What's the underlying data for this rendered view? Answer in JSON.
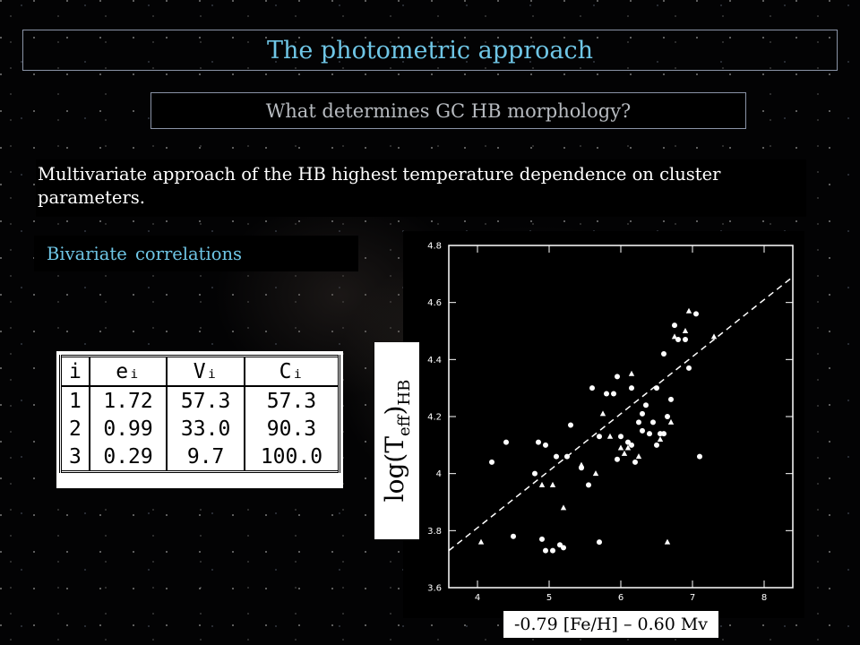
{
  "slide": {
    "title": "The photometric approach",
    "subtitle": "What determines GC HB morphology?",
    "body": "Multivariate approach of the HB highest temperature dependence on cluster parameters.",
    "section_label": "Bivariate correlations"
  },
  "table": {
    "headers": [
      "i",
      "eᵢ",
      "Vᵢ",
      "Cᵢ"
    ],
    "rows": [
      [
        "1",
        "1.72",
        "57.3",
        "57.3"
      ],
      [
        "2",
        "0.99",
        "33.0",
        "90.3"
      ],
      [
        "3",
        "0.29",
        "9.7",
        "100.0"
      ]
    ]
  },
  "chart_data": {
    "type": "scatter",
    "xlabel": "-0.79 [Fe/H] – 0.60 Mv",
    "ylabel": "log(Teff)HB",
    "xlim": [
      3.6,
      8.4
    ],
    "ylim": [
      3.6,
      4.8
    ],
    "x_ticks": [
      4,
      5,
      6,
      7,
      8
    ],
    "y_ticks": [
      3.6,
      3.8,
      4,
      4.2,
      4.4,
      4.6,
      4.8
    ],
    "grid": false,
    "series": [
      {
        "marker": "circle",
        "points": [
          [
            4.2,
            4.04
          ],
          [
            4.4,
            4.11
          ],
          [
            4.5,
            3.78
          ],
          [
            4.8,
            4.0
          ],
          [
            4.85,
            4.11
          ],
          [
            4.9,
            3.77
          ],
          [
            4.95,
            4.1
          ],
          [
            4.95,
            3.73
          ],
          [
            5.05,
            3.73
          ],
          [
            5.1,
            4.06
          ],
          [
            5.15,
            3.75
          ],
          [
            5.2,
            3.74
          ],
          [
            5.25,
            4.06
          ],
          [
            5.3,
            4.17
          ],
          [
            5.45,
            4.02
          ],
          [
            5.55,
            3.96
          ],
          [
            5.6,
            4.3
          ],
          [
            5.7,
            4.13
          ],
          [
            5.7,
            3.76
          ],
          [
            5.8,
            4.28
          ],
          [
            5.9,
            4.28
          ],
          [
            5.95,
            4.34
          ],
          [
            5.95,
            4.05
          ],
          [
            6.0,
            4.13
          ],
          [
            6.1,
            4.11
          ],
          [
            6.15,
            4.3
          ],
          [
            6.15,
            4.1
          ],
          [
            6.2,
            4.04
          ],
          [
            6.25,
            4.18
          ],
          [
            6.3,
            4.15
          ],
          [
            6.3,
            4.21
          ],
          [
            6.35,
            4.24
          ],
          [
            6.4,
            4.14
          ],
          [
            6.45,
            4.18
          ],
          [
            6.5,
            4.3
          ],
          [
            6.5,
            4.1
          ],
          [
            6.55,
            4.14
          ],
          [
            6.6,
            4.42
          ],
          [
            6.6,
            4.14
          ],
          [
            6.65,
            4.2
          ],
          [
            6.7,
            4.26
          ],
          [
            6.75,
            4.52
          ],
          [
            6.8,
            4.47
          ],
          [
            6.9,
            4.47
          ],
          [
            6.95,
            4.37
          ],
          [
            7.05,
            4.56
          ],
          [
            7.1,
            4.06
          ]
        ]
      },
      {
        "marker": "triangle",
        "points": [
          [
            4.05,
            3.76
          ],
          [
            4.9,
            3.96
          ],
          [
            5.05,
            3.96
          ],
          [
            5.2,
            3.88
          ],
          [
            5.45,
            4.03
          ],
          [
            5.65,
            4.0
          ],
          [
            5.75,
            4.21
          ],
          [
            5.85,
            4.13
          ],
          [
            6.0,
            4.09
          ],
          [
            6.05,
            4.07
          ],
          [
            6.1,
            4.09
          ],
          [
            6.15,
            4.35
          ],
          [
            6.25,
            4.06
          ],
          [
            6.55,
            4.12
          ],
          [
            6.65,
            3.76
          ],
          [
            6.7,
            4.18
          ],
          [
            6.75,
            4.48
          ],
          [
            6.9,
            4.5
          ],
          [
            6.95,
            4.57
          ],
          [
            7.3,
            4.48
          ]
        ]
      }
    ],
    "fit_line": [
      [
        3.6,
        3.73
      ],
      [
        8.4,
        4.69
      ]
    ]
  }
}
